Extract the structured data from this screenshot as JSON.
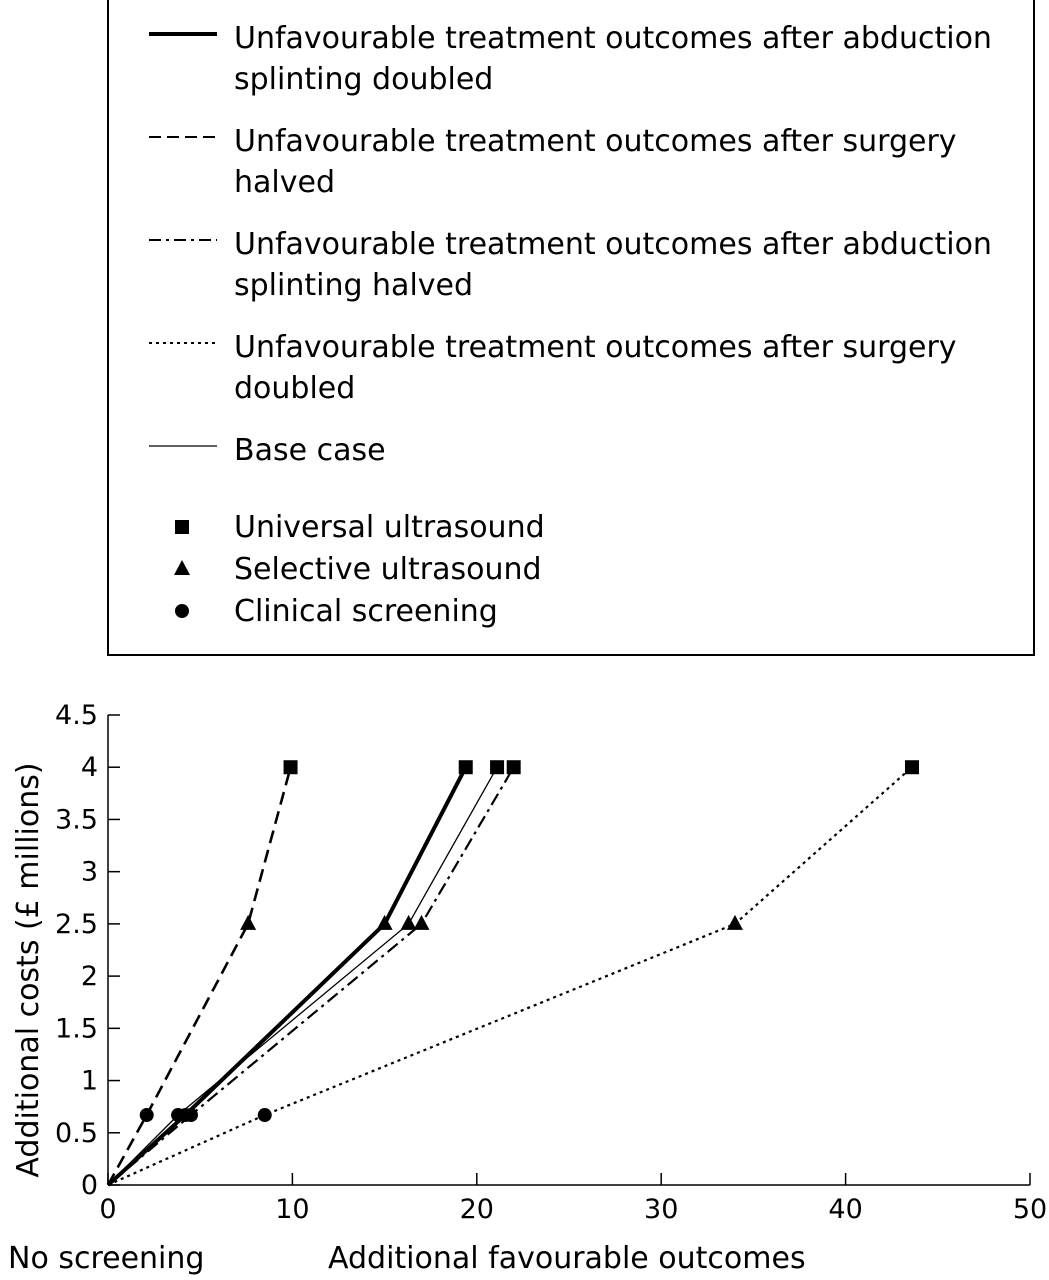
{
  "legend": {
    "lines": [
      {
        "label": "Unfavourable treatment outcomes after abduction splinting doubled",
        "style": "thick-solid"
      },
      {
        "label": "Unfavourable treatment outcomes after surgery halved",
        "style": "dashed"
      },
      {
        "label": "Unfavourable treatment outcomes after abduction splinting halved",
        "style": "dash-dot"
      },
      {
        "label": "Unfavourable treatment outcomes after surgery doubled",
        "style": "dotted"
      },
      {
        "label": "Base case",
        "style": "thin-solid"
      }
    ],
    "markers": [
      {
        "label": "Universal ultrasound",
        "symbol": "square"
      },
      {
        "label": "Selective ultrasound",
        "symbol": "triangle"
      },
      {
        "label": "Clinical screening",
        "symbol": "circle"
      }
    ]
  },
  "chart_data": {
    "type": "line",
    "xlabel": "Additional favourable outcomes",
    "ylabel": "Additional costs (£ millions)",
    "origin_label": "No screening",
    "xlim": [
      0,
      50
    ],
    "ylim": [
      0,
      4.5
    ],
    "xticks": [
      "0",
      "10",
      "20",
      "30",
      "40",
      "50"
    ],
    "yticks": [
      "0",
      "0.5",
      "1",
      "1.5",
      "2",
      "2.5",
      "3",
      "3.5",
      "4",
      "4.5"
    ],
    "grid": false,
    "legend_position": "top",
    "series": [
      {
        "name": "Unfavourable treatment outcomes after abduction splinting doubled",
        "style": "thick-solid",
        "points": [
          [
            0,
            0
          ],
          [
            4.2,
            0.67
          ],
          [
            15.0,
            2.5
          ],
          [
            19.4,
            4.0
          ]
        ]
      },
      {
        "name": "Unfavourable treatment outcomes after surgery halved",
        "style": "dashed",
        "points": [
          [
            0,
            0
          ],
          [
            2.1,
            0.67
          ],
          [
            7.6,
            2.5
          ],
          [
            9.9,
            4.0
          ]
        ]
      },
      {
        "name": "Unfavourable treatment outcomes after abduction splinting halved",
        "style": "dash-dot",
        "points": [
          [
            0,
            0
          ],
          [
            4.5,
            0.67
          ],
          [
            17.0,
            2.5
          ],
          [
            22.0,
            4.0
          ]
        ]
      },
      {
        "name": "Unfavourable treatment outcomes after surgery doubled",
        "style": "dotted",
        "points": [
          [
            0,
            0
          ],
          [
            8.5,
            0.67
          ],
          [
            34.0,
            2.5
          ],
          [
            43.6,
            4.0
          ]
        ]
      },
      {
        "name": "Base case",
        "style": "thin-solid",
        "points": [
          [
            0,
            0
          ],
          [
            3.8,
            0.67
          ],
          [
            16.3,
            2.5
          ],
          [
            21.1,
            4.0
          ]
        ]
      }
    ],
    "point_markers": [
      "circle",
      "triangle",
      "square"
    ]
  }
}
